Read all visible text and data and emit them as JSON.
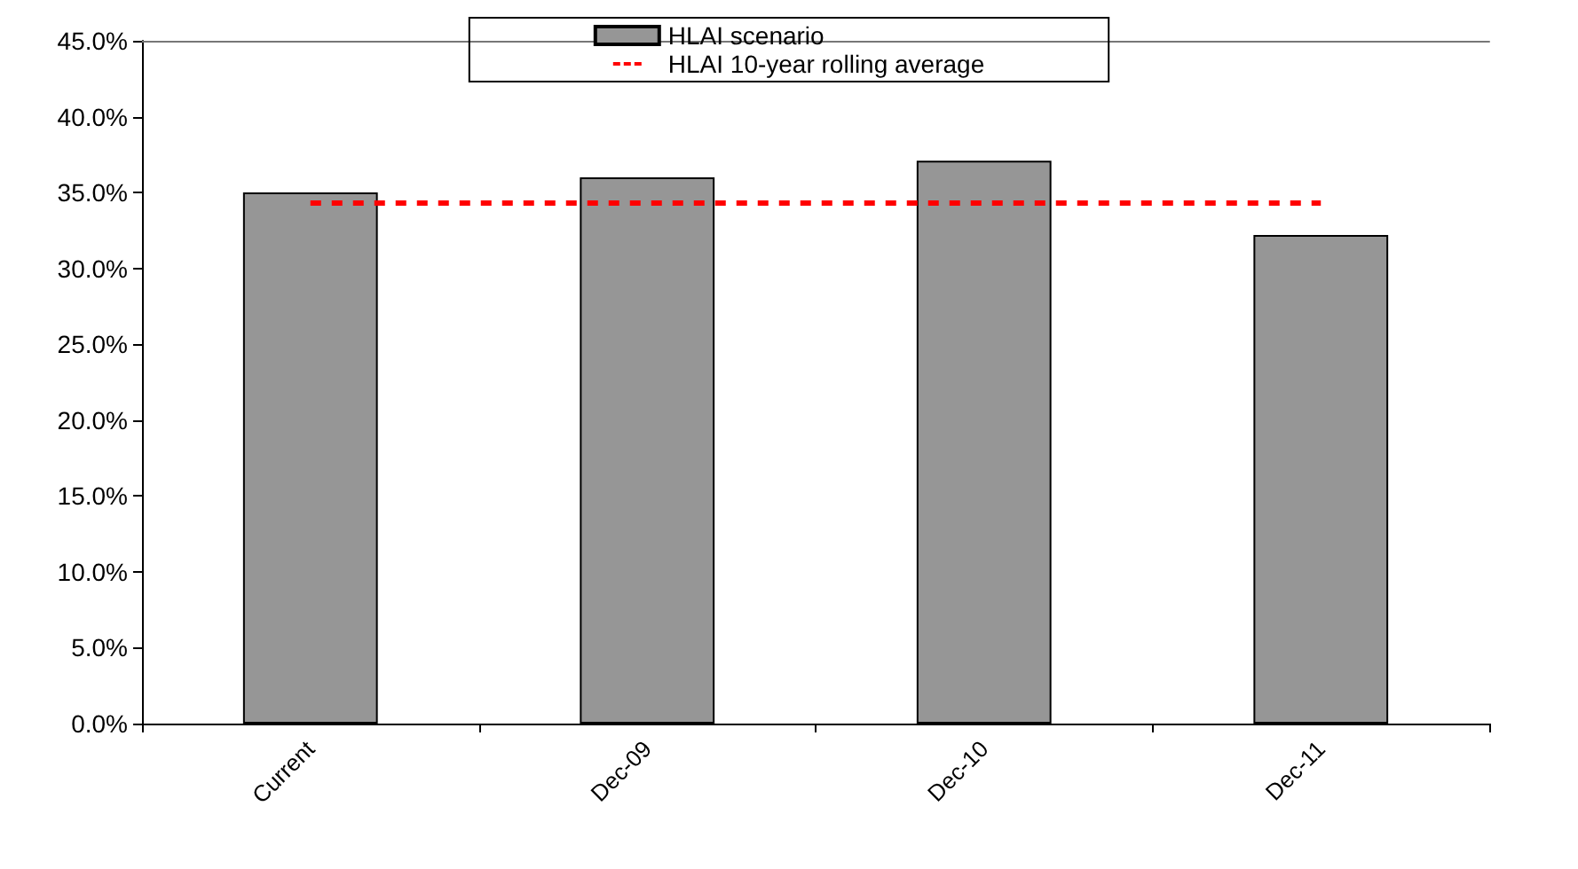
{
  "chart_data": {
    "type": "bar",
    "categories": [
      "Current",
      "Dec-09",
      "Dec-10",
      "Dec-11"
    ],
    "series": [
      {
        "name": "HLAI scenario",
        "color": "#969696",
        "values": [
          35.0,
          36.0,
          37.1,
          32.2
        ]
      },
      {
        "name": "HLAI 10-year rolling average",
        "type": "line",
        "color": "#ff0000",
        "line_style": "dashed",
        "marker": "none",
        "values": [
          34.3,
          34.3,
          34.3,
          34.3
        ]
      }
    ],
    "ylim": [
      0,
      45
    ],
    "yticks": [
      {
        "value": 0,
        "label": "0.0%"
      },
      {
        "value": 5,
        "label": "5.0%"
      },
      {
        "value": 10,
        "label": "10.0%"
      },
      {
        "value": 15,
        "label": "15.0%"
      },
      {
        "value": 20,
        "label": "20.0%"
      },
      {
        "value": 25,
        "label": "25.0%"
      },
      {
        "value": 30,
        "label": "30.0%"
      },
      {
        "value": 35,
        "label": "35.0%"
      },
      {
        "value": 40,
        "label": "40.0%"
      },
      {
        "value": 45,
        "label": "45.0%"
      }
    ],
    "grid": false,
    "legend": "top"
  }
}
